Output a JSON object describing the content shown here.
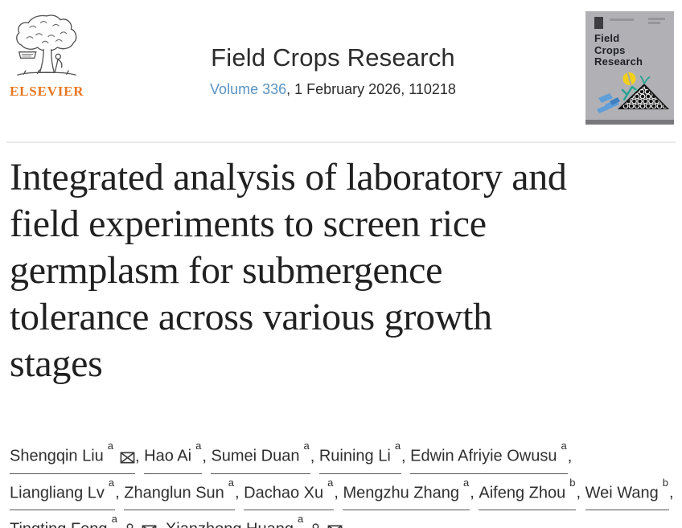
{
  "brand": {
    "logo_text": "ELSEVIER"
  },
  "header": {
    "journal_title": "Field Crops Research",
    "volume_link": "Volume 336",
    "issue_info": ", 1 February 2026, 110218"
  },
  "cover_thumbnail": {
    "title_lines": [
      "Field",
      "Crops",
      "Research"
    ]
  },
  "article": {
    "title_lines": [
      "Integrated analysis of laboratory and",
      "field experiments to screen rice",
      "germplasm for submergence",
      "tolerance across various growth",
      "stages"
    ]
  },
  "authors": [
    {
      "name": "Shengqin Liu",
      "affiliation_sup": "a",
      "icons": [
        "email-icon"
      ]
    },
    {
      "name": "Hao Ai",
      "affiliation_sup": "a",
      "icons": []
    },
    {
      "name": "Sumei Duan",
      "affiliation_sup": "a",
      "icons": []
    },
    {
      "name": "Ruining Li",
      "affiliation_sup": "a",
      "icons": []
    },
    {
      "name": "Edwin Afriyie Owusu",
      "affiliation_sup": "a",
      "icons": []
    },
    {
      "name": "Liangliang Lv",
      "affiliation_sup": "a",
      "icons": []
    },
    {
      "name": "Zhanglun Sun",
      "affiliation_sup": "a",
      "icons": []
    },
    {
      "name": "Dachao Xu",
      "affiliation_sup": "a",
      "icons": []
    },
    {
      "name": "Mengzhu Zhang",
      "affiliation_sup": "a",
      "icons": []
    },
    {
      "name": "Aifeng Zhou",
      "affiliation_sup": "b",
      "icons": []
    },
    {
      "name": "Wei Wang",
      "affiliation_sup": "b",
      "icons": []
    },
    {
      "name": "Tingting Feng",
      "affiliation_sup": "a",
      "icons": [
        "person-icon",
        "email-icon"
      ]
    },
    {
      "name": "Xianzhong Huang",
      "affiliation_sup": "a",
      "icons": [
        "person-icon",
        "email-icon"
      ]
    }
  ],
  "colors": {
    "elsevier_orange": "#e87722",
    "link_blue": "#5b93c2",
    "title_text": "#212121",
    "body_text": "#2f2f2f",
    "cover_background": "#b1b1b5"
  }
}
